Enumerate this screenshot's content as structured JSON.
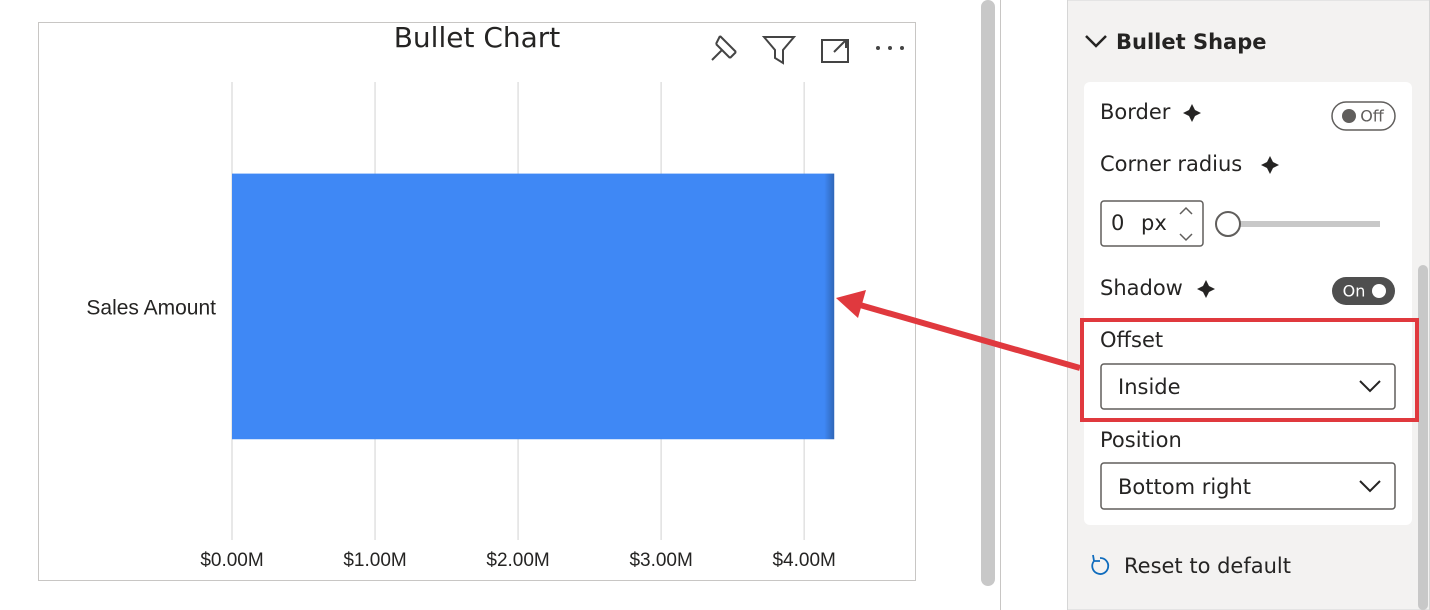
{
  "chart_data": {
    "type": "bar",
    "orientation": "horizontal",
    "title": "Bullet Chart",
    "categories": [
      "Sales Amount"
    ],
    "values": [
      4210000
    ],
    "color": "#3f88f5",
    "xlim": [
      0,
      4600000
    ],
    "xticks": [
      {
        "value": 0,
        "label": "$0.00M"
      },
      {
        "value": 1000000,
        "label": "$1.00M"
      },
      {
        "value": 2000000,
        "label": "$2.00M"
      },
      {
        "value": 3000000,
        "label": "$3.00M"
      },
      {
        "value": 4000000,
        "label": "$4.00M"
      }
    ],
    "grid": true
  },
  "format_pane": {
    "section": "Bullet Shape",
    "border": {
      "label": "Border",
      "toggle": "Off"
    },
    "corner_radius": {
      "label": "Corner radius",
      "value": 0,
      "unit": "px"
    },
    "shadow": {
      "label": "Shadow",
      "toggle": "On"
    },
    "offset": {
      "label": "Offset",
      "value": "Inside"
    },
    "position": {
      "label": "Position",
      "value": "Bottom right"
    },
    "reset": "Reset to default"
  }
}
